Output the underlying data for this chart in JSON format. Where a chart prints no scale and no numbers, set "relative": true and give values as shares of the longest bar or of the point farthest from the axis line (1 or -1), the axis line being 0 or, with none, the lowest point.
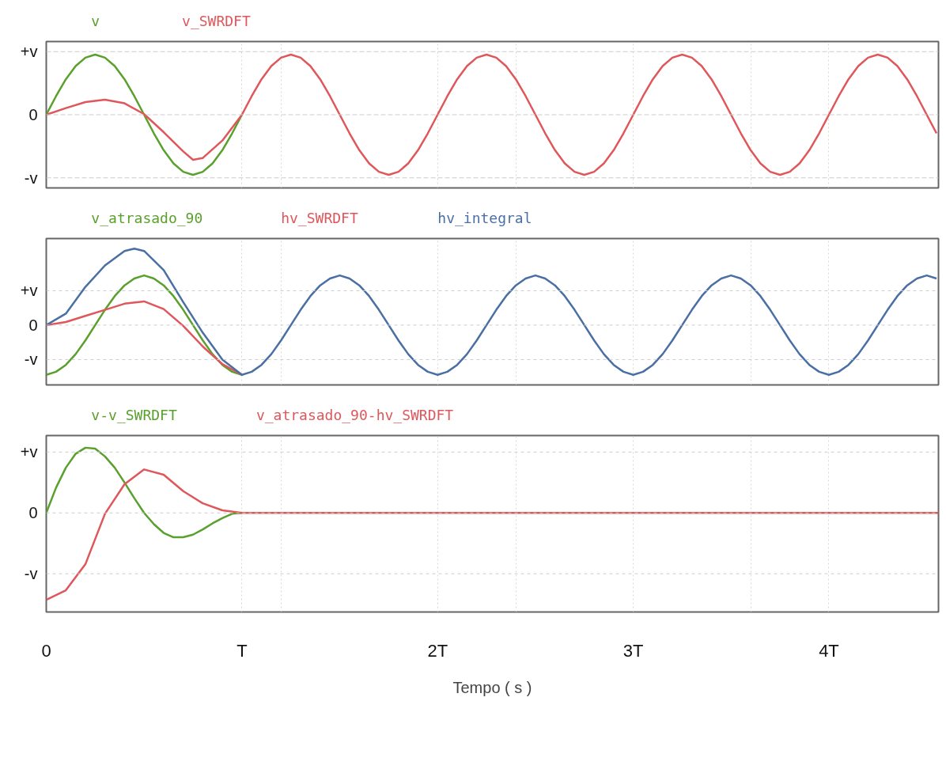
{
  "chart_data": [
    {
      "type": "line",
      "relative": true,
      "legend": "top left",
      "grid": "x",
      "tick_labels": "y",
      "line_style": "solid",
      "xlim": [
        0,
        4.56
      ],
      "xticks": [
        {
          "value": 1,
          "label": null
        },
        {
          "value": 1.2,
          "label": null
        },
        {
          "value": 2,
          "label": null
        },
        {
          "value": 2.4,
          "label": null
        },
        {
          "value": 3,
          "label": null
        },
        {
          "value": 3.6,
          "label": null
        },
        {
          "value": 4,
          "label": null
        }
      ],
      "ref_lines": [
        {
          "axis": "y",
          "value": 1.05,
          "label": "+v",
          "color": "#cccccc",
          "line_style": "dashed"
        },
        {
          "axis": "y",
          "value": 0,
          "label": "0",
          "color": "#cccccc",
          "line_style": "dashed"
        },
        {
          "axis": "y",
          "value": -1.05,
          "label": "-v",
          "color": "#cccccc",
          "line_style": "dashed"
        }
      ],
      "series": [
        {
          "name": "v",
          "color": "#5aa02c",
          "x": [
            0,
            0.05,
            0.1,
            0.15,
            0.2,
            0.25,
            0.3,
            0.35,
            0.4,
            0.45,
            0.5,
            0.55,
            0.6,
            0.65,
            0.7,
            0.75,
            0.8,
            0.85,
            0.9,
            0.95,
            1
          ],
          "values": [
            0,
            0.31,
            0.59,
            0.81,
            0.95,
            1,
            0.95,
            0.81,
            0.59,
            0.31,
            0,
            -0.31,
            -0.59,
            -0.81,
            -0.95,
            -1,
            -0.95,
            -0.81,
            -0.59,
            -0.31,
            0
          ]
        },
        {
          "name": "v_SWRDFT",
          "color": "#e0575b",
          "x": [
            0,
            0.1,
            0.2,
            0.3,
            0.4,
            0.5,
            0.6,
            0.7,
            0.75,
            0.8,
            0.9,
            1,
            1.05,
            1.1,
            1.15,
            1.2,
            1.25,
            1.3,
            1.35,
            1.4,
            1.45,
            1.5,
            1.55,
            1.6,
            1.65,
            1.7,
            1.75,
            1.8,
            1.85,
            1.9,
            1.95,
            2,
            2.05,
            2.1,
            2.15,
            2.2,
            2.25,
            2.3,
            2.35,
            2.4,
            2.45,
            2.5,
            2.55,
            2.6,
            2.65,
            2.7,
            2.75,
            2.8,
            2.85,
            2.9,
            2.95,
            3,
            3.05,
            3.1,
            3.15,
            3.2,
            3.25,
            3.3,
            3.35,
            3.4,
            3.45,
            3.5,
            3.55,
            3.6,
            3.65,
            3.7,
            3.75,
            3.8,
            3.85,
            3.9,
            3.95,
            4,
            4.05,
            4.1,
            4.15,
            4.2,
            4.25,
            4.3,
            4.35,
            4.4,
            4.45,
            4.5,
            4.55
          ],
          "values": [
            0,
            0.11,
            0.21,
            0.25,
            0.19,
            0.01,
            -0.29,
            -0.61,
            -0.75,
            -0.72,
            -0.43,
            0,
            0.31,
            0.59,
            0.81,
            0.95,
            1,
            0.95,
            0.81,
            0.59,
            0.31,
            0,
            -0.31,
            -0.59,
            -0.81,
            -0.95,
            -1,
            -0.95,
            -0.81,
            -0.59,
            -0.31,
            0,
            0.31,
            0.59,
            0.81,
            0.95,
            1,
            0.95,
            0.81,
            0.59,
            0.31,
            0,
            -0.31,
            -0.59,
            -0.81,
            -0.95,
            -1,
            -0.95,
            -0.81,
            -0.59,
            -0.31,
            0,
            0.31,
            0.59,
            0.81,
            0.95,
            1,
            0.95,
            0.81,
            0.59,
            0.31,
            0,
            -0.31,
            -0.59,
            -0.81,
            -0.95,
            -1,
            -0.95,
            -0.81,
            -0.59,
            -0.31,
            0,
            0.31,
            0.59,
            0.81,
            0.95,
            1,
            0.95,
            0.81,
            0.59,
            0.31,
            0,
            -0.31
          ]
        }
      ]
    },
    {
      "type": "line",
      "relative": true,
      "legend": "top left",
      "grid": "x",
      "tick_labels": "y",
      "line_style": "solid",
      "xlim": [
        0,
        4.56
      ],
      "xticks": [
        {
          "value": 1,
          "label": null
        },
        {
          "value": 1.2,
          "label": null
        },
        {
          "value": 2,
          "label": null
        },
        {
          "value": 2.4,
          "label": null
        },
        {
          "value": 3,
          "label": null
        },
        {
          "value": 3.6,
          "label": null
        },
        {
          "value": 4,
          "label": null
        }
      ],
      "ref_lines": [
        {
          "axis": "y",
          "value": 0.45,
          "label": "+v",
          "color": "#cccccc",
          "line_style": "dashed"
        },
        {
          "axis": "y",
          "value": 0,
          "label": "0",
          "color": "#cccccc",
          "line_style": "dashed"
        },
        {
          "axis": "y",
          "value": -0.45,
          "label": "-v",
          "color": "#cccccc",
          "line_style": "dashed"
        }
      ],
      "series": [
        {
          "name": "v_atrasado_90",
          "color": "#5aa02c",
          "x": [
            0,
            0.05,
            0.1,
            0.15,
            0.2,
            0.25,
            0.3,
            0.35,
            0.4,
            0.45,
            0.5,
            0.55,
            0.6,
            0.65,
            0.7,
            0.75,
            0.8,
            0.85,
            0.9,
            0.95,
            1
          ],
          "values": [
            -0.65,
            -0.61,
            -0.52,
            -0.38,
            -0.2,
            0,
            0.2,
            0.38,
            0.52,
            0.61,
            0.65,
            0.61,
            0.52,
            0.38,
            0.2,
            0,
            -0.2,
            -0.38,
            -0.52,
            -0.61,
            -0.65
          ]
        },
        {
          "name": "hv_SWRDFT",
          "color": "#e0575b",
          "x": [
            0,
            0.1,
            0.2,
            0.3,
            0.4,
            0.5,
            0.6,
            0.7,
            0.8,
            0.9,
            1
          ],
          "values": [
            0,
            0.04,
            0.12,
            0.2,
            0.28,
            0.31,
            0.21,
            -0.01,
            -0.28,
            -0.51,
            -0.65
          ]
        },
        {
          "name": "hv_integral",
          "color": "#4a6fa5",
          "x": [
            0,
            0.1,
            0.2,
            0.3,
            0.4,
            0.45,
            0.5,
            0.6,
            0.7,
            0.8,
            0.9,
            1,
            1.05,
            1.1,
            1.15,
            1.2,
            1.25,
            1.3,
            1.35,
            1.4,
            1.45,
            1.5,
            1.55,
            1.6,
            1.65,
            1.7,
            1.75,
            1.8,
            1.85,
            1.9,
            1.95,
            2,
            2.05,
            2.1,
            2.15,
            2.2,
            2.25,
            2.3,
            2.35,
            2.4,
            2.45,
            2.5,
            2.55,
            2.6,
            2.65,
            2.7,
            2.75,
            2.8,
            2.85,
            2.9,
            2.95,
            3,
            3.05,
            3.1,
            3.15,
            3.2,
            3.25,
            3.3,
            3.35,
            3.4,
            3.45,
            3.5,
            3.55,
            3.6,
            3.65,
            3.7,
            3.75,
            3.8,
            3.85,
            3.9,
            3.95,
            4,
            4.05,
            4.1,
            4.15,
            4.2,
            4.25,
            4.3,
            4.35,
            4.4,
            4.45,
            4.5,
            4.55
          ],
          "values": [
            0,
            0.15,
            0.5,
            0.78,
            0.97,
            1,
            0.97,
            0.72,
            0.3,
            -0.1,
            -0.45,
            -0.65,
            -0.61,
            -0.52,
            -0.38,
            -0.2,
            0,
            0.2,
            0.38,
            0.52,
            0.61,
            0.65,
            0.61,
            0.52,
            0.38,
            0.2,
            0,
            -0.2,
            -0.38,
            -0.52,
            -0.61,
            -0.65,
            -0.61,
            -0.52,
            -0.38,
            -0.2,
            0,
            0.2,
            0.38,
            0.52,
            0.61,
            0.65,
            0.61,
            0.52,
            0.38,
            0.2,
            0,
            -0.2,
            -0.38,
            -0.52,
            -0.61,
            -0.65,
            -0.61,
            -0.52,
            -0.38,
            -0.2,
            0,
            0.2,
            0.38,
            0.52,
            0.61,
            0.65,
            0.61,
            0.52,
            0.38,
            0.2,
            0,
            -0.2,
            -0.38,
            -0.52,
            -0.61,
            -0.65,
            -0.61,
            -0.52,
            -0.38,
            -0.2,
            0,
            0.2,
            0.38,
            0.52,
            0.61,
            0.65,
            0.61
          ]
        }
      ]
    },
    {
      "type": "line",
      "relative": true,
      "legend": "top left",
      "grid": "x",
      "line_style": "solid",
      "xlabel": "Tempo ( s )",
      "xlim": [
        0,
        4.56
      ],
      "xticks": [
        0,
        {
          "value": 1,
          "label": "T"
        },
        {
          "value": 1.2,
          "label": null
        },
        {
          "value": 2,
          "label": "2T"
        },
        {
          "value": 2.4,
          "label": null
        },
        {
          "value": 3,
          "label": "3T"
        },
        {
          "value": 3.6,
          "label": null
        },
        {
          "value": 4,
          "label": "4T"
        }
      ],
      "ref_lines": [
        {
          "axis": "y",
          "value": 0.7,
          "label": "+v",
          "color": "#cccccc",
          "line_style": "dashed"
        },
        {
          "axis": "y",
          "value": 0,
          "label": "0",
          "color": "#cccccc",
          "line_style": "dashed"
        },
        {
          "axis": "y",
          "value": -0.7,
          "label": "-v",
          "color": "#cccccc",
          "line_style": "dashed"
        }
      ],
      "series": [
        {
          "name": "v-v_SWRDFT",
          "color": "#5aa02c",
          "x": [
            0,
            0.05,
            0.1,
            0.15,
            0.2,
            0.25,
            0.3,
            0.35,
            0.4,
            0.45,
            0.5,
            0.55,
            0.6,
            0.65,
            0.7,
            0.75,
            0.8,
            0.85,
            0.9,
            0.95,
            1
          ],
          "values": [
            0,
            0.29,
            0.52,
            0.68,
            0.75,
            0.74,
            0.65,
            0.52,
            0.35,
            0.17,
            0,
            -0.13,
            -0.23,
            -0.28,
            -0.28,
            -0.25,
            -0.19,
            -0.12,
            -0.06,
            -0.01,
            0
          ]
        },
        {
          "name": "v_atrasado_90-hv_SWRDFT",
          "color": "#e0575b",
          "x": [
            0,
            0.1,
            0.2,
            0.3,
            0.4,
            0.5,
            0.6,
            0.7,
            0.8,
            0.9,
            1,
            4.56
          ],
          "values": [
            -1,
            -0.89,
            -0.59,
            -0.01,
            0.33,
            0.5,
            0.44,
            0.25,
            0.11,
            0.03,
            0,
            0
          ]
        }
      ]
    }
  ]
}
